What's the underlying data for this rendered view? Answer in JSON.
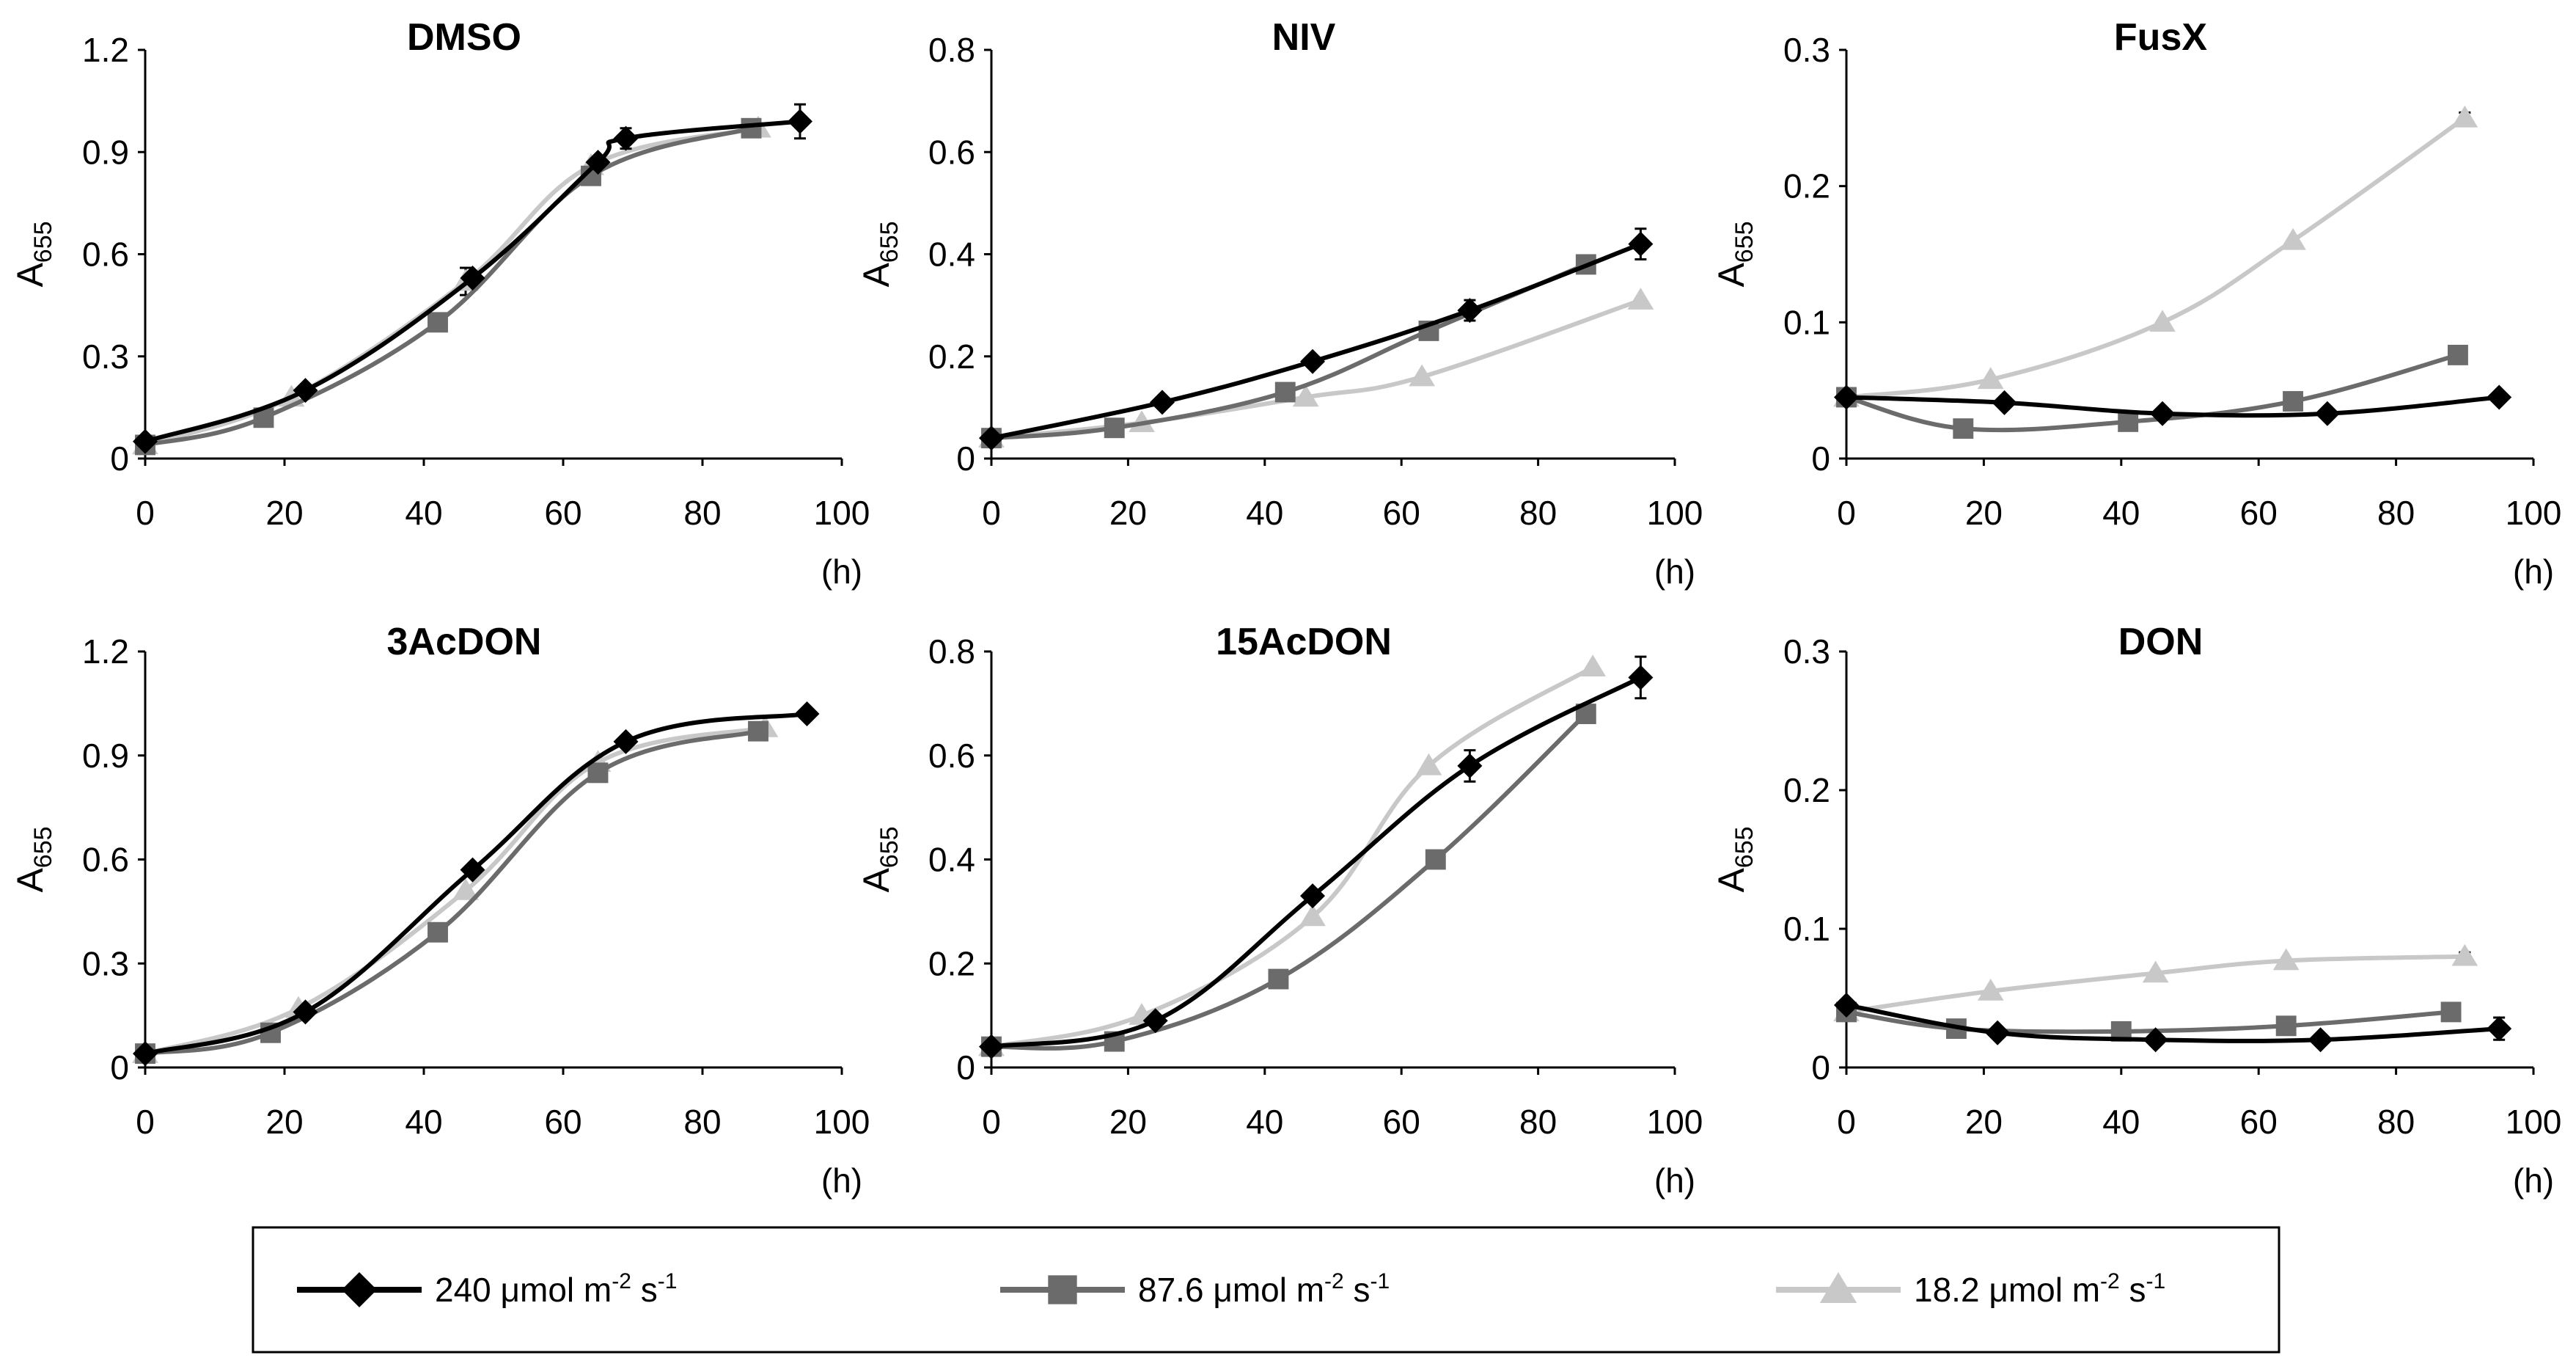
{
  "chart_data": [
    {
      "type": "line",
      "title": "DMSO",
      "ylabel": "A",
      "ylabel_sub": "655",
      "xlabel": "(h)",
      "xlim": [
        0,
        100
      ],
      "ylim": [
        0,
        1.2
      ],
      "xticks": [
        "0",
        "20",
        "40",
        "60",
        "80",
        "100"
      ],
      "yticks": [
        "0",
        "0.3",
        "0.6",
        "0.9",
        "1.2"
      ],
      "series": [
        {
          "name": "240",
          "x": [
            0,
            23,
            47,
            65,
            69,
            94
          ],
          "y": [
            0.05,
            0.2,
            0.53,
            0.87,
            0.94,
            0.99
          ],
          "err": [
            0,
            0,
            0,
            0,
            0.03,
            0.05
          ]
        },
        {
          "name": "87.6",
          "x": [
            0,
            17,
            42,
            64,
            87
          ],
          "y": [
            0.04,
            0.12,
            0.4,
            0.83,
            0.97
          ],
          "err": [
            0,
            0,
            0,
            0,
            0
          ]
        },
        {
          "name": "18.2",
          "x": [
            0,
            21,
            46,
            64,
            88
          ],
          "y": [
            0.04,
            0.18,
            0.52,
            0.86,
            0.97
          ],
          "err": [
            0,
            0,
            0.04,
            0,
            0
          ]
        }
      ]
    },
    {
      "type": "line",
      "title": "NIV",
      "ylabel": "A",
      "ylabel_sub": "655",
      "xlabel": "(h)",
      "xlim": [
        0,
        100
      ],
      "ylim": [
        0,
        0.8
      ],
      "xticks": [
        "0",
        "20",
        "40",
        "60",
        "80",
        "100"
      ],
      "yticks": [
        "0",
        "0.2",
        "0.4",
        "0.6",
        "0.8"
      ],
      "series": [
        {
          "name": "240",
          "x": [
            0,
            25,
            47,
            70,
            95
          ],
          "y": [
            0.04,
            0.11,
            0.19,
            0.29,
            0.42
          ],
          "err": [
            0,
            0,
            0,
            0.02,
            0.03
          ]
        },
        {
          "name": "87.6",
          "x": [
            0,
            18,
            43,
            64,
            87
          ],
          "y": [
            0.04,
            0.06,
            0.13,
            0.25,
            0.38
          ],
          "err": [
            0,
            0,
            0,
            0,
            0
          ]
        },
        {
          "name": "18.2",
          "x": [
            0,
            22,
            46,
            63,
            95
          ],
          "y": [
            0.04,
            0.07,
            0.12,
            0.16,
            0.31
          ],
          "err": [
            0,
            0,
            0,
            0,
            0
          ]
        }
      ]
    },
    {
      "type": "line",
      "title": "FusX",
      "ylabel": "A",
      "ylabel_sub": "655",
      "xlabel": "(h)",
      "xlim": [
        0,
        100
      ],
      "ylim": [
        0,
        0.3
      ],
      "xticks": [
        "0",
        "20",
        "40",
        "60",
        "80",
        "100"
      ],
      "yticks": [
        "0",
        "0.1",
        "0.2",
        "0.3"
      ],
      "series": [
        {
          "name": "240",
          "x": [
            0,
            23,
            46,
            70,
            95
          ],
          "y": [
            0.045,
            0.041,
            0.033,
            0.033,
            0.045
          ],
          "err": [
            0,
            0,
            0,
            0,
            0
          ]
        },
        {
          "name": "87.6",
          "x": [
            0,
            17,
            41,
            65,
            89
          ],
          "y": [
            0.045,
            0.022,
            0.027,
            0.042,
            0.076
          ],
          "err": [
            0,
            0,
            0,
            0,
            0
          ]
        },
        {
          "name": "18.2",
          "x": [
            0,
            21,
            46,
            65,
            90
          ],
          "y": [
            0.045,
            0.058,
            0.1,
            0.16,
            0.25
          ],
          "err": [
            0,
            0,
            0,
            0,
            0.004
          ]
        }
      ]
    },
    {
      "type": "line",
      "title": "3AcDON",
      "ylabel": "A",
      "ylabel_sub": "655",
      "xlabel": "(h)",
      "xlim": [
        0,
        100
      ],
      "ylim": [
        0,
        1.2
      ],
      "xticks": [
        "0",
        "20",
        "40",
        "60",
        "80",
        "100"
      ],
      "yticks": [
        "0",
        "0.3",
        "0.6",
        "0.9",
        "1.2"
      ],
      "series": [
        {
          "name": "240",
          "x": [
            0,
            23,
            47,
            69,
            95
          ],
          "y": [
            0.04,
            0.16,
            0.57,
            0.94,
            1.02
          ],
          "err": [
            0,
            0,
            0,
            0,
            0
          ]
        },
        {
          "name": "87.6",
          "x": [
            0,
            18,
            42,
            65,
            88
          ],
          "y": [
            0.04,
            0.1,
            0.39,
            0.85,
            0.97
          ],
          "err": [
            0,
            0,
            0,
            0,
            0
          ]
        },
        {
          "name": "18.2",
          "x": [
            0,
            22,
            46,
            65,
            89
          ],
          "y": [
            0.04,
            0.17,
            0.51,
            0.88,
            0.98
          ],
          "err": [
            0,
            0,
            0,
            0,
            0
          ]
        }
      ]
    },
    {
      "type": "line",
      "title": "15AcDON",
      "ylabel": "A",
      "ylabel_sub": "655",
      "xlabel": "(h)",
      "xlim": [
        0,
        100
      ],
      "ylim": [
        0,
        0.8
      ],
      "xticks": [
        "0",
        "20",
        "40",
        "60",
        "80",
        "100"
      ],
      "yticks": [
        "0",
        "0.2",
        "0.4",
        "0.6",
        "0.8"
      ],
      "series": [
        {
          "name": "240",
          "x": [
            0,
            24,
            47,
            70,
            95
          ],
          "y": [
            0.04,
            0.09,
            0.33,
            0.58,
            0.75
          ],
          "err": [
            0,
            0,
            0,
            0.03,
            0.04
          ]
        },
        {
          "name": "87.6",
          "x": [
            0,
            18,
            42,
            65,
            87
          ],
          "y": [
            0.04,
            0.05,
            0.17,
            0.4,
            0.68
          ],
          "err": [
            0,
            0,
            0,
            0,
            0
          ]
        },
        {
          "name": "18.2",
          "x": [
            0,
            22,
            47,
            64,
            88
          ],
          "y": [
            0.04,
            0.1,
            0.29,
            0.58,
            0.77
          ],
          "err": [
            0,
            0,
            0,
            0,
            0
          ]
        }
      ]
    },
    {
      "type": "line",
      "title": "DON",
      "ylabel": "A",
      "ylabel_sub": "655",
      "xlabel": "(h)",
      "xlim": [
        0,
        100
      ],
      "ylim": [
        0,
        0.3
      ],
      "xticks": [
        "0",
        "20",
        "40",
        "60",
        "80",
        "100"
      ],
      "yticks": [
        "0",
        "0.1",
        "0.2",
        "0.3"
      ],
      "series": [
        {
          "name": "240",
          "x": [
            0,
            22,
            45,
            69,
            95
          ],
          "y": [
            0.045,
            0.025,
            0.02,
            0.02,
            0.028
          ],
          "err": [
            0,
            0,
            0,
            0,
            0.008
          ]
        },
        {
          "name": "87.6",
          "x": [
            0,
            16,
            40,
            64,
            88
          ],
          "y": [
            0.04,
            0.028,
            0.026,
            0.03,
            0.04
          ],
          "err": [
            0,
            0,
            0,
            0,
            0
          ]
        },
        {
          "name": "18.2",
          "x": [
            0,
            21,
            45,
            64,
            90
          ],
          "y": [
            0.04,
            0.055,
            0.068,
            0.077,
            0.08
          ],
          "err": [
            0,
            0,
            0,
            0,
            0.003
          ]
        }
      ]
    }
  ],
  "series_styles": [
    {
      "color": "#000000",
      "marker": "diamond"
    },
    {
      "color": "#6b6b6b",
      "marker": "square"
    },
    {
      "color": "#c8c8c8",
      "marker": "triangle"
    }
  ],
  "legend": {
    "items": [
      {
        "value": "240",
        "unit": "μmol m",
        "exp1": "-2",
        "mid": " s",
        "exp2": "-1"
      },
      {
        "value": "87.6",
        "unit": "μmol m",
        "exp1": "-2",
        "mid": " s",
        "exp2": "-1"
      },
      {
        "value": "18.2",
        "unit": "μmol m",
        "exp1": "-2",
        "mid": " s",
        "exp2": "-1"
      }
    ]
  }
}
